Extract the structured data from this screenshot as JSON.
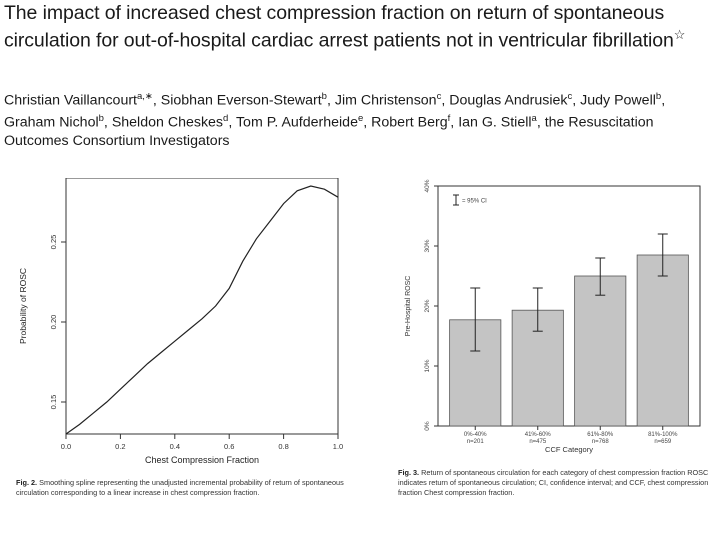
{
  "title": "The impact of increased chest compression fraction on return of spontaneous circulation for out-of-hospital cardiac arrest patients not in ventricular fibrillation",
  "title_mark": "☆",
  "authors": [
    {
      "name": "Christian Vaillancourt",
      "sup": "a,∗"
    },
    {
      "name": "Siobhan Everson-Stewart",
      "sup": "b"
    },
    {
      "name": "Jim Christenson",
      "sup": "c"
    },
    {
      "name": "Douglas Andrusiek",
      "sup": "c"
    },
    {
      "name": "Judy Powell",
      "sup": "b"
    },
    {
      "name": "Graham Nichol",
      "sup": "b"
    },
    {
      "name": "Sheldon Cheskes",
      "sup": "d"
    },
    {
      "name": "Tom P. Aufderheide",
      "sup": "e"
    },
    {
      "name": "Robert Berg",
      "sup": "f"
    },
    {
      "name": "Ian G. Stiell",
      "sup": "a"
    }
  ],
  "authors_tail": ", the Resuscitation Outcomes Consortium Investigators",
  "figure2": {
    "caption_label": "Fig. 2.",
    "caption_text": "Smoothing spline representing the unadjusted incremental probability of return of spontaneous circulation corresponding to a linear increase in chest compression fraction."
  },
  "figure3": {
    "caption_label": "Fig. 3.",
    "caption_text": "Return of spontaneous circulation for each category of chest compression fraction ROSC indicates return of spontaneous circulation; CI, confidence interval; and CCF, chest compression fraction Chest compression fraction."
  },
  "chart_data": [
    {
      "type": "line",
      "title": "",
      "xlabel": "Chest Compression Fraction",
      "ylabel": "Probability of ROSC",
      "xlim": [
        0.0,
        1.0
      ],
      "ylim": [
        0.13,
        0.285
      ],
      "xticks": [
        "0.0",
        "0.2",
        "0.4",
        "0.6",
        "0.8",
        "1.0"
      ],
      "yticks": [
        "0.15",
        "0.20",
        "0.25"
      ],
      "x": [
        0.0,
        0.05,
        0.1,
        0.15,
        0.2,
        0.25,
        0.3,
        0.35,
        0.4,
        0.45,
        0.5,
        0.55,
        0.6,
        0.65,
        0.7,
        0.75,
        0.8,
        0.85,
        0.9,
        0.95,
        1.0
      ],
      "y": [
        0.13,
        0.136,
        0.143,
        0.15,
        0.158,
        0.166,
        0.174,
        0.181,
        0.188,
        0.195,
        0.202,
        0.21,
        0.221,
        0.238,
        0.252,
        0.263,
        0.274,
        0.282,
        0.285,
        0.283,
        0.278
      ]
    },
    {
      "type": "bar",
      "title": "",
      "xlabel": "CCF Category",
      "ylabel": "Pre-Hospital ROSC",
      "ylim": [
        0,
        40
      ],
      "yticks": [
        "0%",
        "10%",
        "20%",
        "30%",
        "40%"
      ],
      "legend": "95% CI",
      "categories": [
        "0%-40%",
        "41%-60%",
        "61%-80%",
        "81%-100%"
      ],
      "category_counts": [
        "n=201",
        "n=475",
        "n=768",
        "n=659"
      ],
      "values": [
        17.7,
        19.3,
        25.0,
        28.5
      ],
      "ci_low": [
        12.5,
        15.8,
        21.8,
        25.0
      ],
      "ci_high": [
        23.0,
        23.0,
        28.0,
        32.0
      ]
    }
  ]
}
